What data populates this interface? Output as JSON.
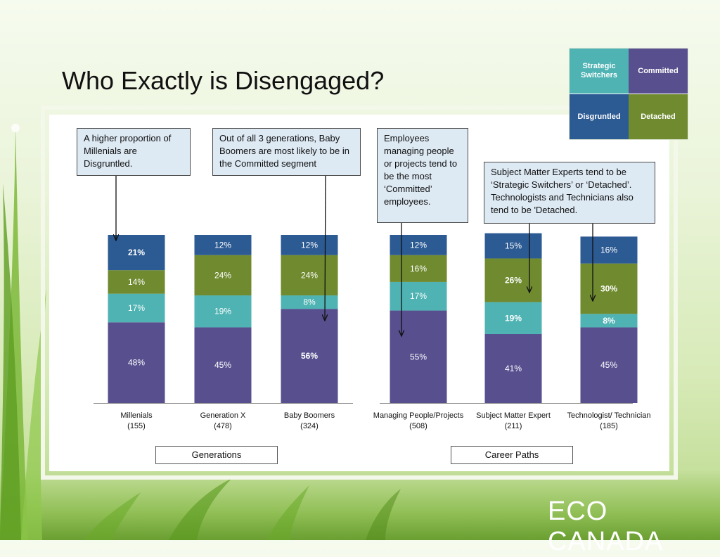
{
  "slide": {
    "title": "Who Exactly is Disengaged?",
    "logo_text": "ECO CANADA"
  },
  "legend": {
    "segments": [
      {
        "label": "Strategic Switchers",
        "color": "#4fb3b3"
      },
      {
        "label": "Committed",
        "color": "#574f8e"
      },
      {
        "label": "Disgruntled",
        "color": "#2c5a93"
      },
      {
        "label": "Detached",
        "color": "#6f8a2f"
      }
    ]
  },
  "callouts": [
    {
      "text": "A higher proportion of Millenials are Disgruntled."
    },
    {
      "text": "Out of all 3 generations, Baby Boomers are most likely to be in the Committed segment"
    },
    {
      "text": "Employees managing people or projects tend to be the most ‘Committed’ employees."
    },
    {
      "text": "Subject Matter Experts tend to be ‘Strategic Switchers’ or ‘Detached’. Technologists and Technicians also tend to be 'Detached."
    }
  ],
  "section_labels": {
    "generations": "Generations",
    "career_paths": "Career Paths"
  },
  "chart_data": {
    "type": "bar",
    "stacked": true,
    "categories": [
      "Millenials",
      "Generation X",
      "Baby Boomers",
      "Managing People/Projects",
      "Subject Matter Expert",
      "Technologist/ Technician"
    ],
    "category_counts": [
      "(155)",
      "(478)",
      "(324)",
      "(508)",
      "(211)",
      "(185)"
    ],
    "groups": [
      {
        "name": "Generations",
        "categories": [
          0,
          1,
          2
        ]
      },
      {
        "name": "Career Paths",
        "categories": [
          3,
          4,
          5
        ]
      }
    ],
    "unit": "%",
    "ylim": [
      0,
      100
    ],
    "grid": false,
    "series": [
      {
        "name": "Committed",
        "color": "#574f8e",
        "values": [
          48,
          45,
          56,
          55,
          41,
          45
        ],
        "bold": [
          false,
          false,
          true,
          false,
          false,
          false
        ]
      },
      {
        "name": "Strategic Switchers",
        "color": "#4fb3b3",
        "values": [
          17,
          19,
          8,
          17,
          19,
          8
        ],
        "bold": [
          false,
          false,
          false,
          false,
          true,
          true
        ]
      },
      {
        "name": "Detached",
        "color": "#6f8a2f",
        "values": [
          14,
          24,
          24,
          16,
          26,
          30
        ],
        "bold": [
          false,
          false,
          false,
          false,
          true,
          true
        ]
      },
      {
        "name": "Disgruntled",
        "color": "#2c5a93",
        "values": [
          21,
          12,
          12,
          12,
          15,
          16
        ],
        "bold": [
          true,
          false,
          false,
          false,
          false,
          false
        ]
      }
    ]
  }
}
